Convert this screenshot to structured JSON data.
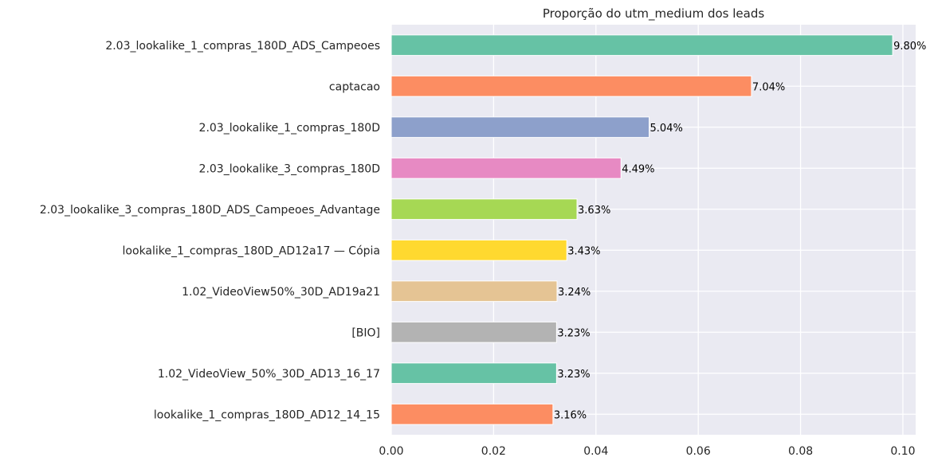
{
  "chart_data": {
    "type": "bar",
    "orientation": "horizontal",
    "title": "Proporção do utm_medium dos leads",
    "xlabel": "",
    "ylabel": "",
    "xlim": [
      0,
      0.1025
    ],
    "xticks": [
      0.0,
      0.02,
      0.04,
      0.06,
      0.08,
      0.1
    ],
    "xtick_labels": [
      "0.00",
      "0.02",
      "0.04",
      "0.06",
      "0.08",
      "0.10"
    ],
    "grid": true,
    "background": "#eaeaf2",
    "categories": [
      "2.03_lookalike_1_compras_180D_ADS_Campeoes",
      "captacao",
      "2.03_lookalike_1_compras_180D",
      "2.03_lookalike_3_compras_180D",
      "2.03_lookalike_3_compras_180D_ADS_Campeoes_Advantage",
      "lookalike_1_compras_180D_AD12a17 — Cópia",
      "1.02_VideoView50%_30D_AD19a21",
      "[BIO]",
      "1.02_VideoView_50%_30D_AD13_16_17",
      "lookalike_1_compras_180D_AD12_14_15"
    ],
    "values": [
      0.098,
      0.0704,
      0.0504,
      0.0449,
      0.0363,
      0.0343,
      0.0324,
      0.0323,
      0.0323,
      0.0316
    ],
    "data_labels": [
      "9.80%",
      "7.04%",
      "5.04%",
      "4.49%",
      "3.63%",
      "3.43%",
      "3.24%",
      "3.23%",
      "3.23%",
      "3.16%"
    ],
    "colors": [
      "#66c2a5",
      "#fc8d62",
      "#8da0cb",
      "#e78ac3",
      "#a6d854",
      "#ffd92f",
      "#e5c494",
      "#b3b3b3",
      "#66c2a5",
      "#fc8d62"
    ]
  }
}
